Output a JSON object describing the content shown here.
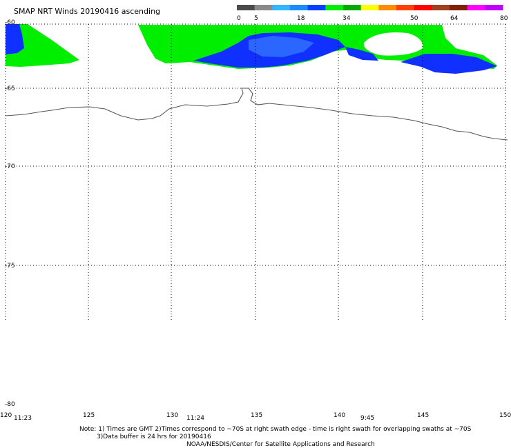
{
  "title": "SMAP NRT Winds 20190416 ascending",
  "colorbar": {
    "labels": [
      "0",
      "5",
      "18",
      "34",
      "50",
      "64",
      "80"
    ],
    "colors": [
      "#4a4a4a",
      "#8a8a8a",
      "#2fb8ff",
      "#1a8cff",
      "#0040ff",
      "#00ee00",
      "#00aa00",
      "#ffff00",
      "#ff8c00",
      "#ff4000",
      "#ff0000",
      "#a04020",
      "#802000",
      "#ff00ff",
      "#c000ff"
    ]
  },
  "axes": {
    "lat_labels": [
      "-60",
      "-65",
      "-70",
      "-75",
      "-80"
    ],
    "lon_labels": [
      "120",
      "125",
      "130",
      "135",
      "140",
      "145",
      "150"
    ]
  },
  "times": [
    "11:23",
    "11:24",
    "9:45"
  ],
  "notes": {
    "line1": "Note:  1) Times are GMT  2)Times correspond to ~70S at right swath edge - time is right swath for overlapping swaths at ~70S",
    "line2": "3)Data buffer is 24 hrs for 20190416",
    "line3": "NOAA/NESDIS/Center for Satellite Applications and Research"
  },
  "swath_colors": {
    "moderate": "#00ee00",
    "low": "#1030ff",
    "low_light": "#2a66ff"
  }
}
